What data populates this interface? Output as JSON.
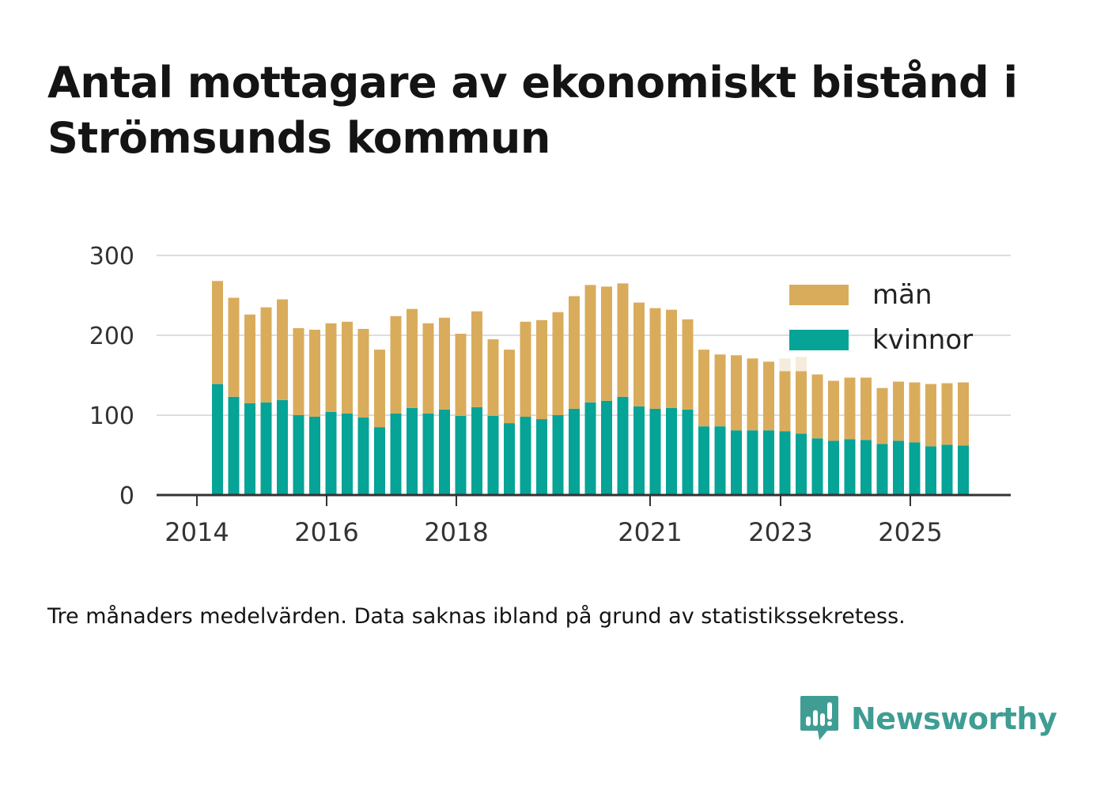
{
  "title": "Antal mottagare av ekonomiskt bistånd i Strömsunds kommun",
  "note": "Tre månaders medelvärden. Data saknas ibland på grund av statistikssekretess.",
  "brand": {
    "name": "Newsworthy",
    "logo_icon": "bar-chart-speech-bubble-icon"
  },
  "colors": {
    "man": "#d9ac5c",
    "kvinnor": "#06a397",
    "missing": "#f5ecdc",
    "grid": "#dddddd",
    "axis": "#333333"
  },
  "chart_data": {
    "type": "bar",
    "stacked": true,
    "ylim": [
      0,
      300
    ],
    "yticks": [
      0,
      100,
      200,
      300
    ],
    "xticks": [
      "2014",
      "2016",
      "2018",
      "2021",
      "2023",
      "2025"
    ],
    "legend_position": "top-right",
    "grid": true,
    "series": [
      {
        "name": "män",
        "key": "man"
      },
      {
        "name": "kvinnor",
        "key": "kvinnor"
      }
    ],
    "bars": [
      {
        "kvinnor": 139,
        "man": 129
      },
      {
        "kvinnor": 123,
        "man": 124
      },
      {
        "kvinnor": 115,
        "man": 111
      },
      {
        "kvinnor": 116,
        "man": 119
      },
      {
        "kvinnor": 119,
        "man": 126
      },
      {
        "kvinnor": 100,
        "man": 109
      },
      {
        "kvinnor": 98,
        "man": 109
      },
      {
        "kvinnor": 104,
        "man": 111
      },
      {
        "kvinnor": 102,
        "man": 115
      },
      {
        "kvinnor": 97,
        "man": 111
      },
      {
        "kvinnor": 85,
        "man": 97
      },
      {
        "kvinnor": 102,
        "man": 122
      },
      {
        "kvinnor": 109,
        "man": 124
      },
      {
        "kvinnor": 102,
        "man": 113
      },
      {
        "kvinnor": 107,
        "man": 115
      },
      {
        "kvinnor": 99,
        "man": 103
      },
      {
        "kvinnor": 110,
        "man": 120
      },
      {
        "kvinnor": 99,
        "man": 96
      },
      {
        "kvinnor": 90,
        "man": 92
      },
      {
        "kvinnor": 98,
        "man": 119
      },
      {
        "kvinnor": 95,
        "man": 124
      },
      {
        "kvinnor": 100,
        "man": 129
      },
      {
        "kvinnor": 108,
        "man": 141
      },
      {
        "kvinnor": 116,
        "man": 147
      },
      {
        "kvinnor": 118,
        "man": 143
      },
      {
        "kvinnor": 123,
        "man": 142
      },
      {
        "kvinnor": 111,
        "man": 130
      },
      {
        "kvinnor": 108,
        "man": 126
      },
      {
        "kvinnor": 109,
        "man": 123
      },
      {
        "kvinnor": 107,
        "man": 113
      },
      {
        "kvinnor": 86,
        "man": 96
      },
      {
        "kvinnor": 86,
        "man": 90
      },
      {
        "kvinnor": 81,
        "man": 94
      },
      {
        "kvinnor": 81,
        "man": 90
      },
      {
        "kvinnor": 81,
        "man": 86
      },
      {
        "kvinnor": 80,
        "man": 75,
        "missing_top": 171
      },
      {
        "kvinnor": 77,
        "man": 78,
        "missing_top": 173
      },
      {
        "kvinnor": 71,
        "man": 80
      },
      {
        "kvinnor": 68,
        "man": 75
      },
      {
        "kvinnor": 70,
        "man": 77
      },
      {
        "kvinnor": 69,
        "man": 78
      },
      {
        "kvinnor": 64,
        "man": 70
      },
      {
        "kvinnor": 68,
        "man": 74
      },
      {
        "kvinnor": 66,
        "man": 75
      },
      {
        "kvinnor": 61,
        "man": 78
      },
      {
        "kvinnor": 63,
        "man": 77
      },
      {
        "kvinnor": 62,
        "man": 79
      }
    ]
  }
}
